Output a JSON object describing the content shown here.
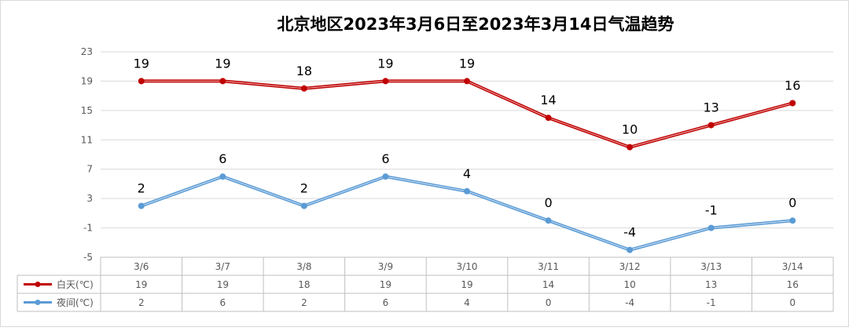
{
  "chart_data": {
    "type": "line",
    "title": "北京地区2023年3月6日至2023年3月14日气温趋势",
    "categories": [
      "3/6",
      "3/7",
      "3/8",
      "3/9",
      "3/10",
      "3/11",
      "3/12",
      "3/13",
      "3/14"
    ],
    "series": [
      {
        "name": "白天(℃)",
        "color": "#c00000",
        "values": [
          19,
          19,
          18,
          19,
          19,
          14,
          10,
          13,
          16
        ]
      },
      {
        "name": "夜间(℃)",
        "color": "#5b9bd5",
        "values": [
          2,
          6,
          2,
          6,
          4,
          0,
          -4,
          -1,
          0
        ]
      }
    ],
    "y_ticks": [
      "23",
      "19",
      "15",
      "11",
      "7",
      "3",
      "-1",
      "-5"
    ],
    "ylim": [
      -5,
      23
    ],
    "grid": true,
    "data_labels": true,
    "legend": "data-table"
  }
}
